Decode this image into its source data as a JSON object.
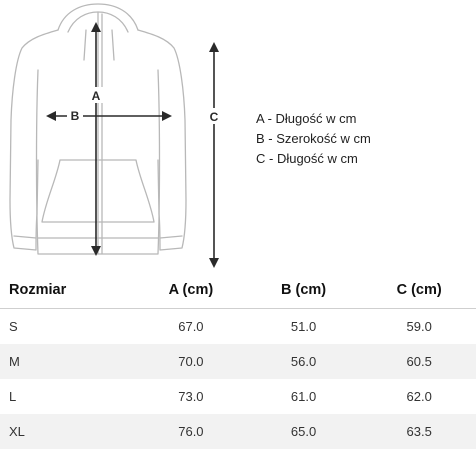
{
  "diagram": {
    "marker_a": "A",
    "marker_b": "B",
    "marker_c": "C"
  },
  "legend": [
    "A - Długość w cm",
    "B - Szerokość w cm",
    "C - Długość w cm"
  ],
  "table": {
    "headers": [
      "Rozmiar",
      "A (cm)",
      "B (cm)",
      "C (cm)"
    ],
    "rows": [
      [
        "S",
        "67.0",
        "51.0",
        "59.0"
      ],
      [
        "M",
        "70.0",
        "56.0",
        "60.5"
      ],
      [
        "L",
        "73.0",
        "61.0",
        "62.0"
      ],
      [
        "XL",
        "76.0",
        "65.0",
        "63.5"
      ]
    ]
  }
}
